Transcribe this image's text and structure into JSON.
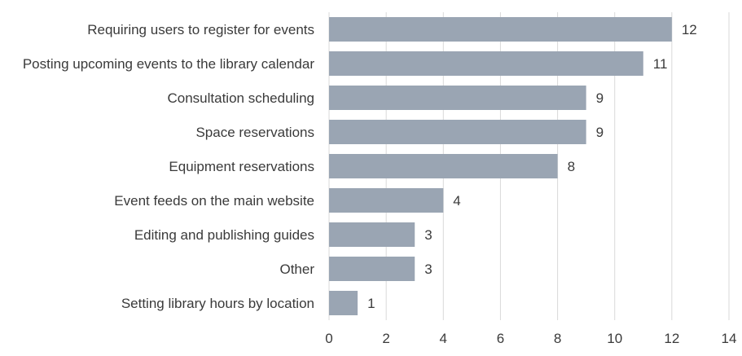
{
  "chart_data": {
    "type": "bar",
    "orientation": "horizontal",
    "categories": [
      "Requiring users to register for events",
      "Posting upcoming events to the library calendar",
      "Consultation scheduling",
      "Space reservations",
      "Equipment reservations",
      "Event feeds on the main website",
      "Editing and publishing guides",
      "Other",
      "Setting library hours by location"
    ],
    "values": [
      12,
      11,
      9,
      9,
      8,
      4,
      3,
      3,
      1
    ],
    "title": "",
    "xlabel": "",
    "ylabel": "",
    "xlim": [
      0,
      14
    ],
    "x_ticks": [
      0,
      2,
      4,
      6,
      8,
      10,
      12,
      14
    ],
    "grid": true,
    "data_labels": true,
    "legend": "none",
    "colors": {
      "bar": "#9aa5b3",
      "grid": "#d9d9d9",
      "text": "#3a3a3a"
    }
  }
}
